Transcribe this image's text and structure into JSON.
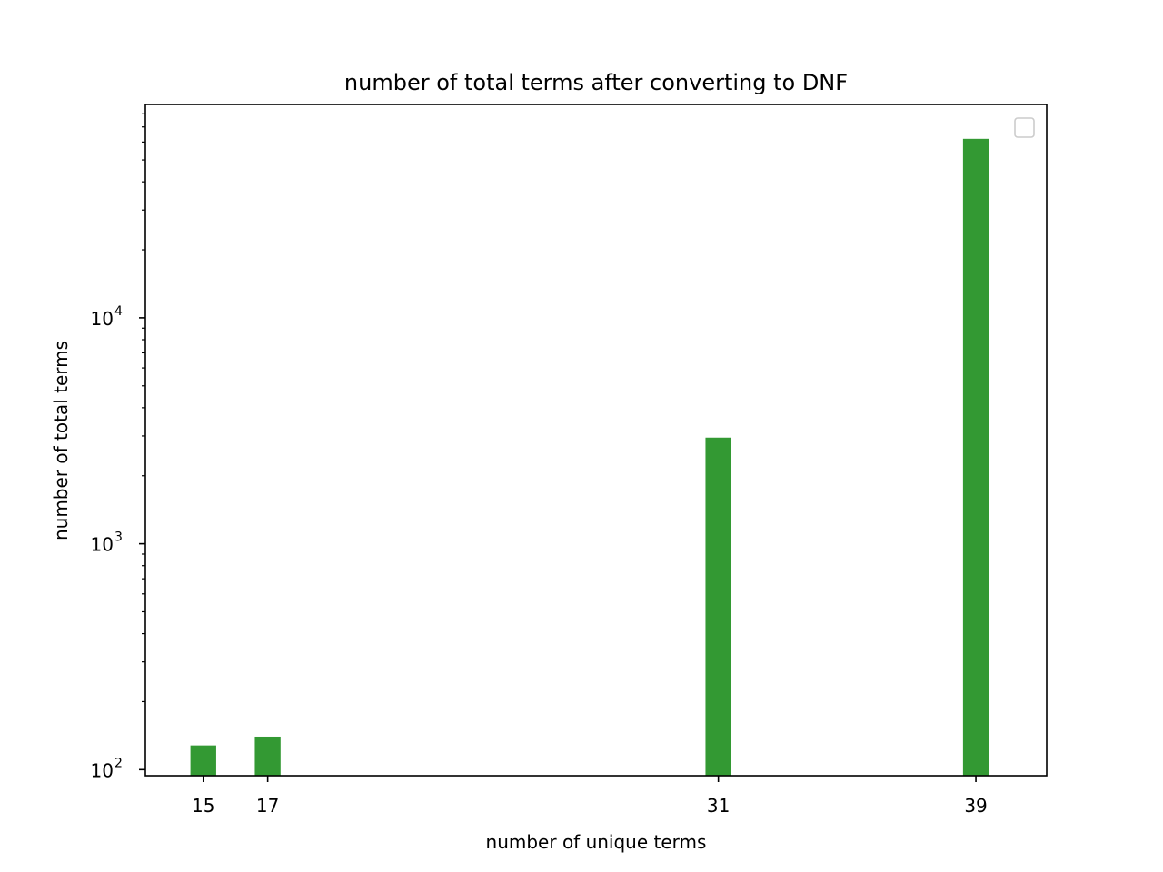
{
  "chart_data": {
    "type": "bar",
    "title": "number of total terms after converting to DNF",
    "xlabel": "number of unique terms",
    "ylabel": "number of total terms",
    "x": [
      15,
      17,
      31,
      39
    ],
    "values": [
      128,
      140,
      2950,
      62000
    ],
    "xlim": [
      13.2,
      41.2
    ],
    "ylim": [
      94,
      88000
    ],
    "yscale": "log",
    "x_ticks": [
      "15",
      "17",
      "31",
      "39"
    ],
    "y_ticks": [
      {
        "value": 100,
        "base": "10",
        "exp": "2"
      },
      {
        "value": 1000,
        "base": "10",
        "exp": "3"
      },
      {
        "value": 10000,
        "base": "10",
        "exp": "4"
      }
    ],
    "bar_width": 0.8,
    "bar_color": "#339933",
    "grid": false,
    "legend": {
      "placement": "upper right",
      "entries": []
    }
  }
}
